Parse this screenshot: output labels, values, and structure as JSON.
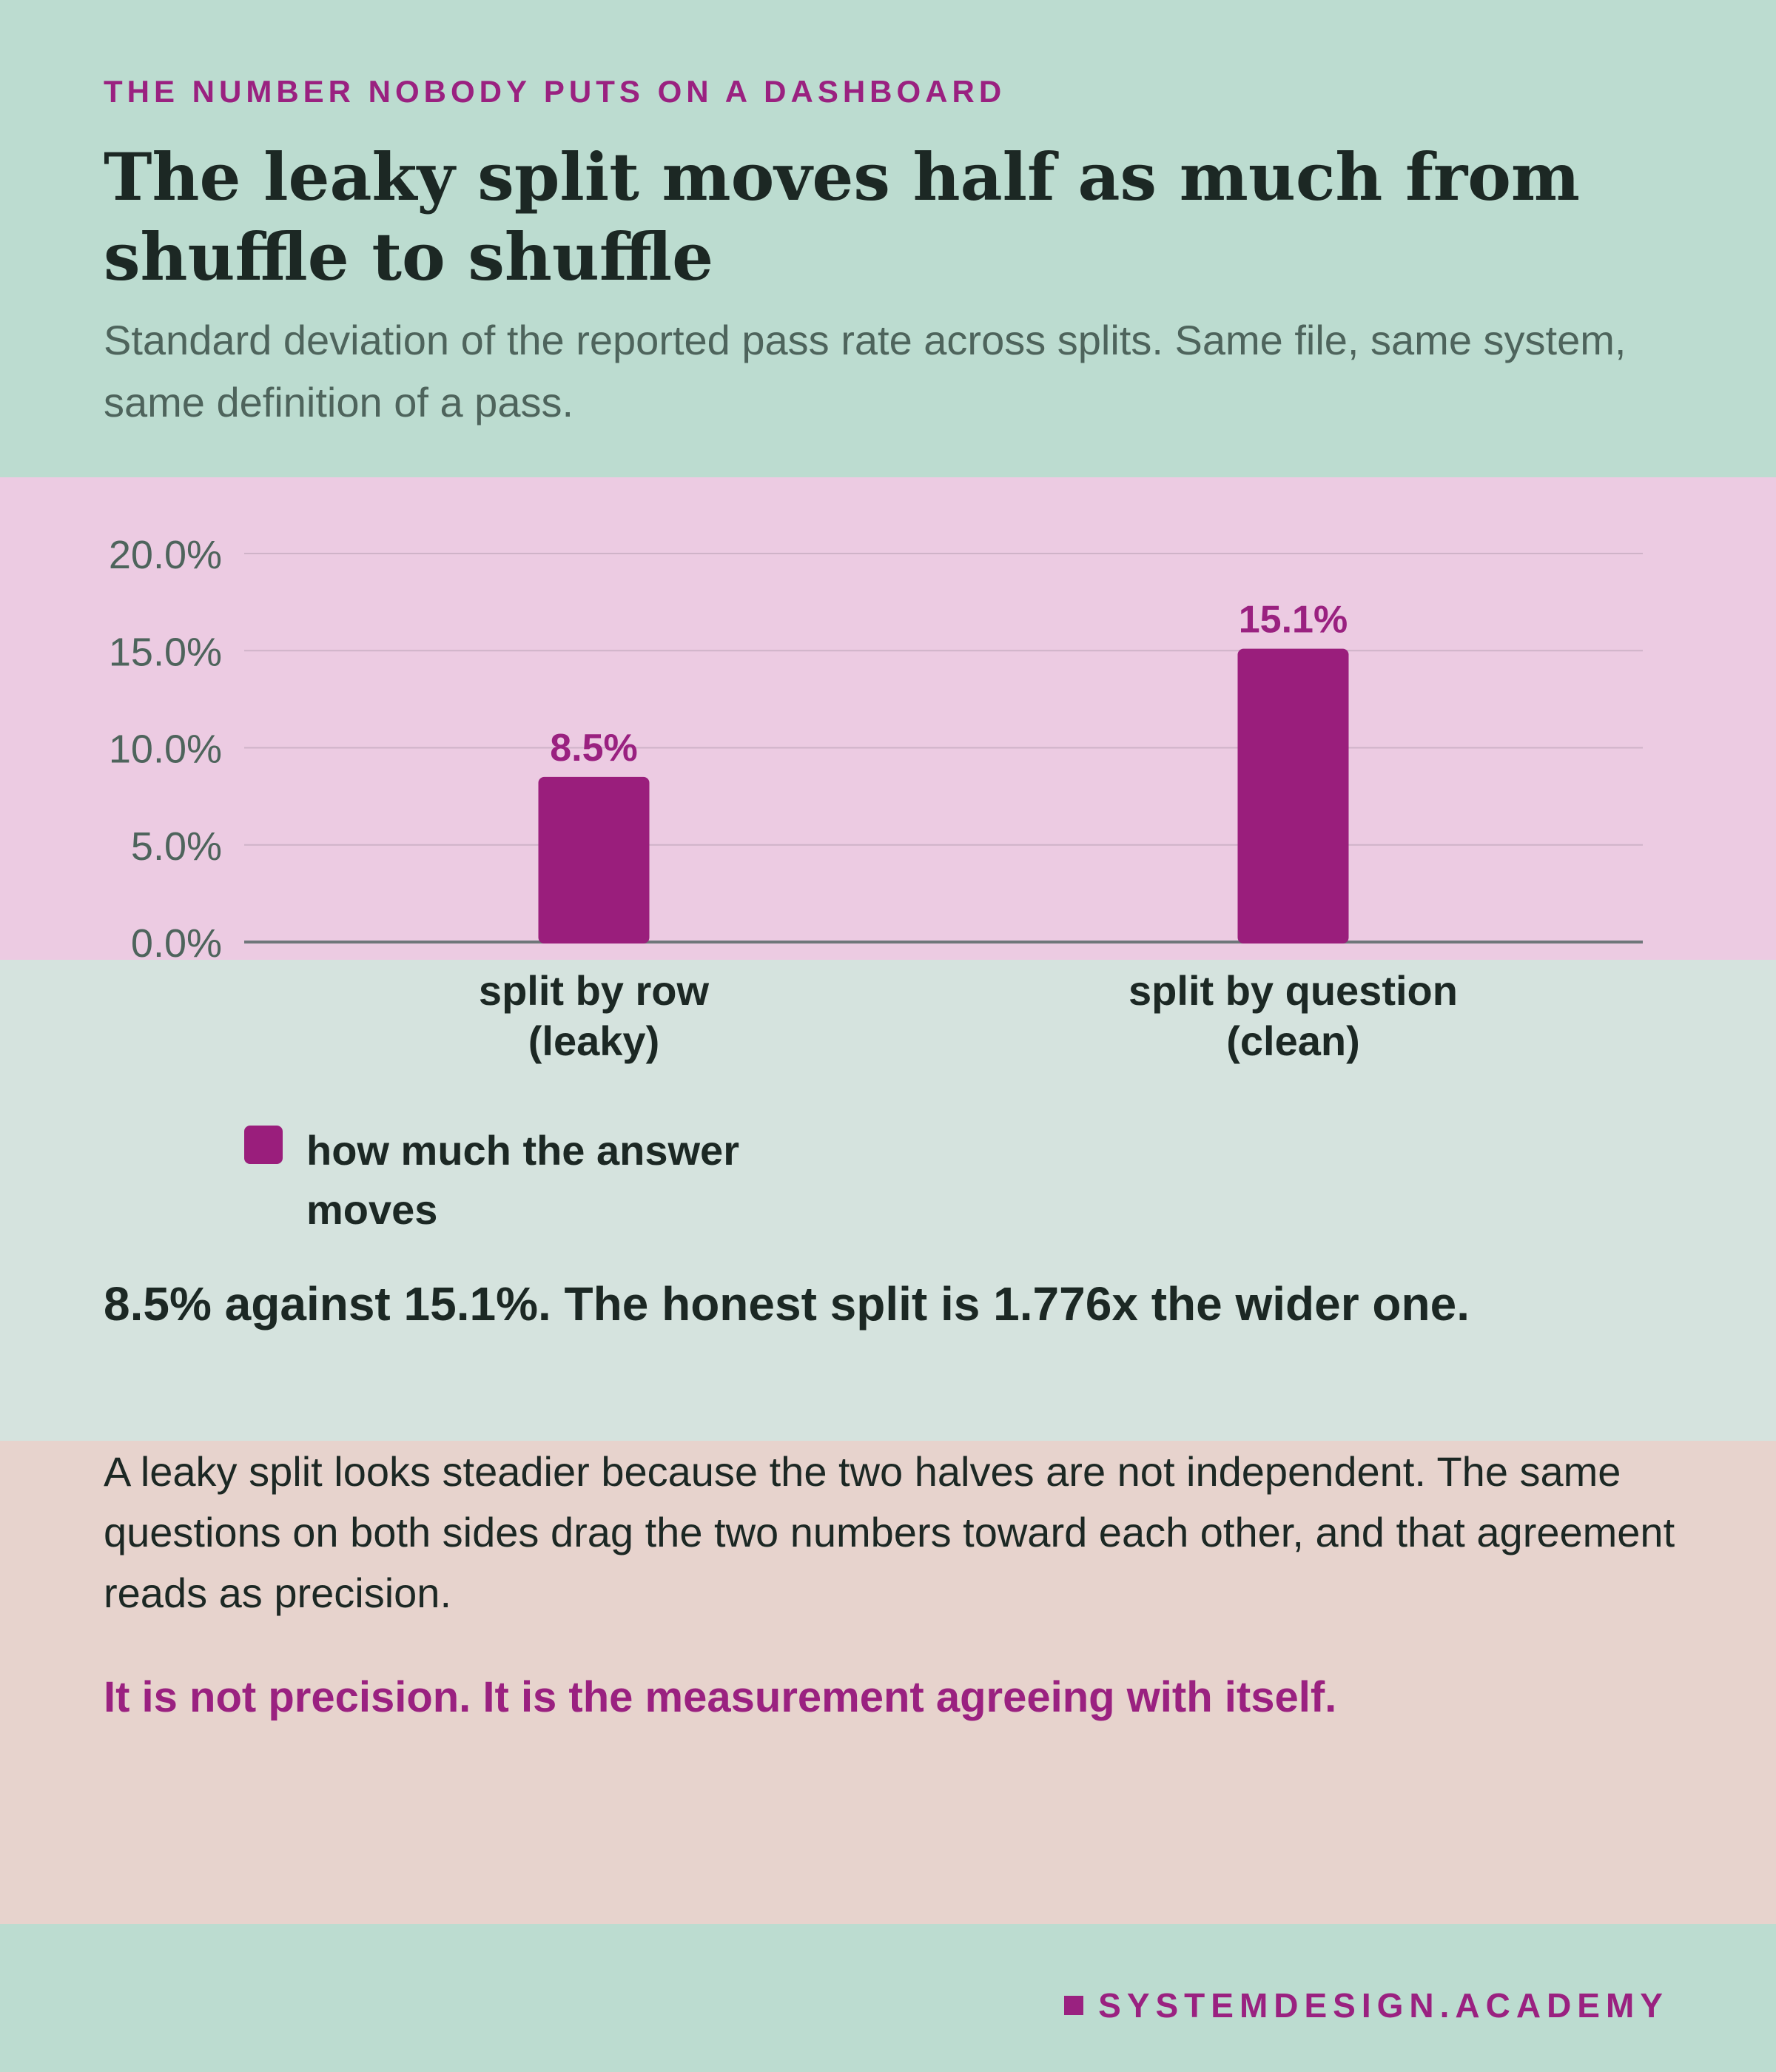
{
  "kicker": "THE NUMBER NOBODY PUTS ON A DASHBOARD",
  "title": "The leaky split moves half as much from shuffle to shuffle",
  "subtitle": "Standard deviation of the reported pass rate across splits. Same file, same system, same definition of a pass.",
  "chart_data": {
    "type": "bar",
    "categories": [
      [
        "split by row",
        "(leaky)"
      ],
      [
        "split by question",
        "(clean)"
      ]
    ],
    "series": [
      {
        "name": "how much the answer moves",
        "values": [
          8.5,
          15.1
        ]
      }
    ],
    "data_labels": [
      "8.5%",
      "15.1%"
    ],
    "y_ticks": [
      "0.0%",
      "5.0%",
      "10.0%",
      "15.0%",
      "20.0%"
    ],
    "ylim": [
      0,
      20
    ],
    "grid": true,
    "legend_position": "bottom-left",
    "bar_color": "#9a1e7c"
  },
  "takeaway": "8.5% against 15.1%. The honest split is 1.776x the wider one.",
  "body": "A leaky split looks steadier because the two halves are not independent. The same questions on both sides drag the two numbers toward each other, and that agreement reads as precision.",
  "punchline": "It is not precision. It is the measurement agreeing with itself.",
  "footer": "SYSTEMDESIGN.ACADEMY"
}
